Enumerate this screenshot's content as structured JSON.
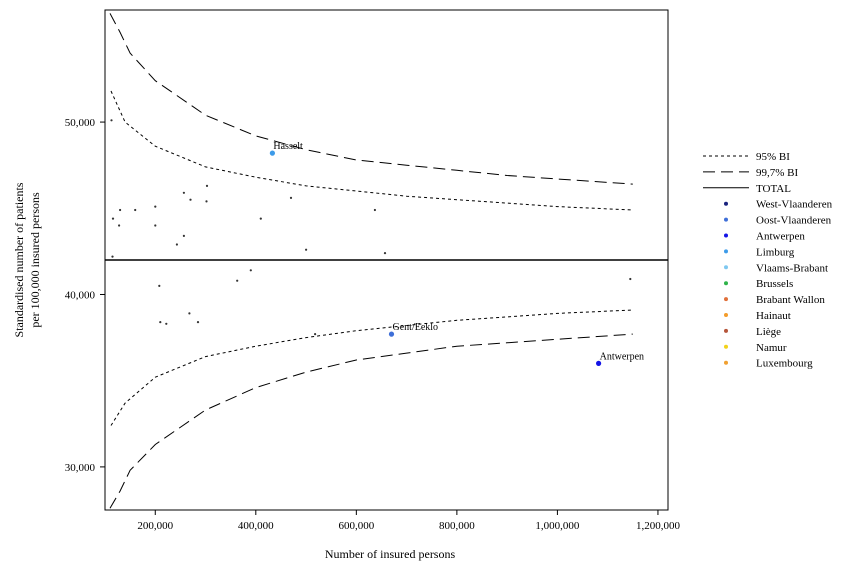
{
  "chart_data": {
    "type": "scatter",
    "title": "",
    "xlabel": "Number of insured persons",
    "ylabel_lines": [
      "Standardised number of patients",
      "per 100,000 insured persons"
    ],
    "xlim": [
      100000,
      1220000
    ],
    "ylim": [
      27500,
      56500
    ],
    "x_ticks": [
      200000,
      400000,
      600000,
      800000,
      1000000,
      1200000
    ],
    "x_tick_labels": [
      "200,000",
      "400,000",
      "600,000",
      "800,000",
      "1,000,000",
      "1,200,000"
    ],
    "y_ticks": [
      30000,
      40000,
      50000
    ],
    "y_tick_labels": [
      "30,000",
      "40,000",
      "50,000"
    ],
    "grid": false,
    "legend_position": "right",
    "total": 42000,
    "legend": [
      {
        "label": "95% BI",
        "kind": "line",
        "dash": "short"
      },
      {
        "label": "99,7% BI",
        "kind": "line",
        "dash": "long"
      },
      {
        "label": "TOTAL",
        "kind": "line",
        "dash": "solid"
      },
      {
        "label": "West-Vlaanderen",
        "kind": "dot",
        "color": "#1a237e"
      },
      {
        "label": "Oost-Vlaanderen",
        "kind": "dot",
        "color": "#3f6fd8"
      },
      {
        "label": "Antwerpen",
        "kind": "dot",
        "color": "#1414e6"
      },
      {
        "label": "Limburg",
        "kind": "dot",
        "color": "#3d9be9"
      },
      {
        "label": "Vlaams-Brabant",
        "kind": "dot",
        "color": "#7fc8f0"
      },
      {
        "label": "Brussels",
        "kind": "dot",
        "color": "#2fb34a"
      },
      {
        "label": "Brabant Wallon",
        "kind": "dot",
        "color": "#e0703a"
      },
      {
        "label": "Hainaut",
        "kind": "dot",
        "color": "#f39c2b"
      },
      {
        "label": "Liège",
        "kind": "dot",
        "color": "#b5553a"
      },
      {
        "label": "Namur",
        "kind": "dot",
        "color": "#f2d21a"
      },
      {
        "label": "Luxembourg",
        "kind": "dot",
        "color": "#f0a030"
      }
    ],
    "band_95_upper": [
      [
        112000,
        51800
      ],
      [
        140000,
        50000
      ],
      [
        200000,
        48600
      ],
      [
        300000,
        47400
      ],
      [
        400000,
        46800
      ],
      [
        500000,
        46300
      ],
      [
        600000,
        46000
      ],
      [
        700000,
        45700
      ],
      [
        800000,
        45500
      ],
      [
        900000,
        45300
      ],
      [
        1000000,
        45100
      ],
      [
        1150000,
        44900
      ]
    ],
    "band_95_lower": [
      [
        112000,
        32400
      ],
      [
        140000,
        33700
      ],
      [
        200000,
        35200
      ],
      [
        300000,
        36400
      ],
      [
        400000,
        37000
      ],
      [
        500000,
        37500
      ],
      [
        600000,
        37900
      ],
      [
        700000,
        38200
      ],
      [
        800000,
        38500
      ],
      [
        900000,
        38700
      ],
      [
        1000000,
        38900
      ],
      [
        1150000,
        39100
      ]
    ],
    "band_997_upper": [
      [
        110000,
        56300
      ],
      [
        130000,
        55200
      ],
      [
        150000,
        54000
      ],
      [
        200000,
        52400
      ],
      [
        300000,
        50400
      ],
      [
        400000,
        49200
      ],
      [
        500000,
        48400
      ],
      [
        600000,
        47800
      ],
      [
        700000,
        47500
      ],
      [
        800000,
        47200
      ],
      [
        900000,
        46900
      ],
      [
        1000000,
        46700
      ],
      [
        1150000,
        46400
      ]
    ],
    "band_997_lower": [
      [
        110000,
        27600
      ],
      [
        130000,
        28600
      ],
      [
        150000,
        29800
      ],
      [
        200000,
        31300
      ],
      [
        300000,
        33300
      ],
      [
        400000,
        34600
      ],
      [
        500000,
        35500
      ],
      [
        600000,
        36200
      ],
      [
        700000,
        36600
      ],
      [
        800000,
        37000
      ],
      [
        900000,
        37200
      ],
      [
        1000000,
        37400
      ],
      [
        1150000,
        37700
      ]
    ],
    "points": [
      {
        "x": 113000,
        "y": 50100
      },
      {
        "x": 116000,
        "y": 44400
      },
      {
        "x": 130000,
        "y": 44900
      },
      {
        "x": 128000,
        "y": 44000
      },
      {
        "x": 160000,
        "y": 44900
      },
      {
        "x": 200000,
        "y": 45100
      },
      {
        "x": 200000,
        "y": 44000
      },
      {
        "x": 257000,
        "y": 45900
      },
      {
        "x": 270000,
        "y": 45500
      },
      {
        "x": 303000,
        "y": 46300
      },
      {
        "x": 302000,
        "y": 45400
      },
      {
        "x": 243000,
        "y": 42900
      },
      {
        "x": 257000,
        "y": 43400
      },
      {
        "x": 410000,
        "y": 44400
      },
      {
        "x": 470000,
        "y": 45600
      },
      {
        "x": 500000,
        "y": 42600
      },
      {
        "x": 637000,
        "y": 44900
      },
      {
        "x": 657000,
        "y": 42400
      },
      {
        "x": 115000,
        "y": 42200
      },
      {
        "x": 208000,
        "y": 40500
      },
      {
        "x": 363000,
        "y": 40800
      },
      {
        "x": 390000,
        "y": 41400
      },
      {
        "x": 1145000,
        "y": 40900
      },
      {
        "x": 210000,
        "y": 38400
      },
      {
        "x": 222000,
        "y": 38300
      },
      {
        "x": 268000,
        "y": 38900
      },
      {
        "x": 285000,
        "y": 38400
      },
      {
        "x": 518000,
        "y": 37700
      },
      {
        "x": 433000,
        "y": 48200,
        "label": "Hasselt",
        "color": "#3d9be9",
        "big": true
      },
      {
        "x": 670000,
        "y": 37700,
        "label": "Gent/Eeklo",
        "color": "#3f6fd8",
        "big": true
      },
      {
        "x": 1082000,
        "y": 36000,
        "label": "Antwerpen",
        "color": "#1414e6",
        "big": true
      }
    ]
  }
}
